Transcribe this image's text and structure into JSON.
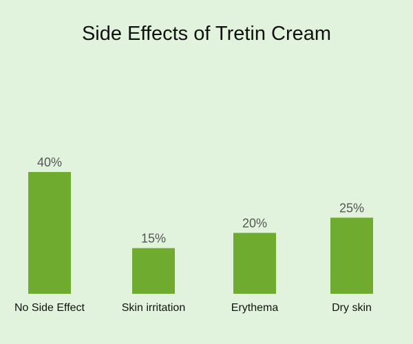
{
  "chart_data": {
    "type": "bar",
    "title": "Side Effects of Tretin Cream",
    "categories": [
      "No Side Effect",
      "Skin irritation",
      "Erythema",
      "Dry skin"
    ],
    "values": [
      40,
      15,
      20,
      25
    ],
    "value_labels": [
      "40%",
      "15%",
      "20%",
      "25%"
    ],
    "unit": "%",
    "ylim": [
      0,
      40
    ],
    "grid": false,
    "legend": "none",
    "colors": {
      "bar": "#6eab2e",
      "background": "#e2f3dd"
    }
  }
}
